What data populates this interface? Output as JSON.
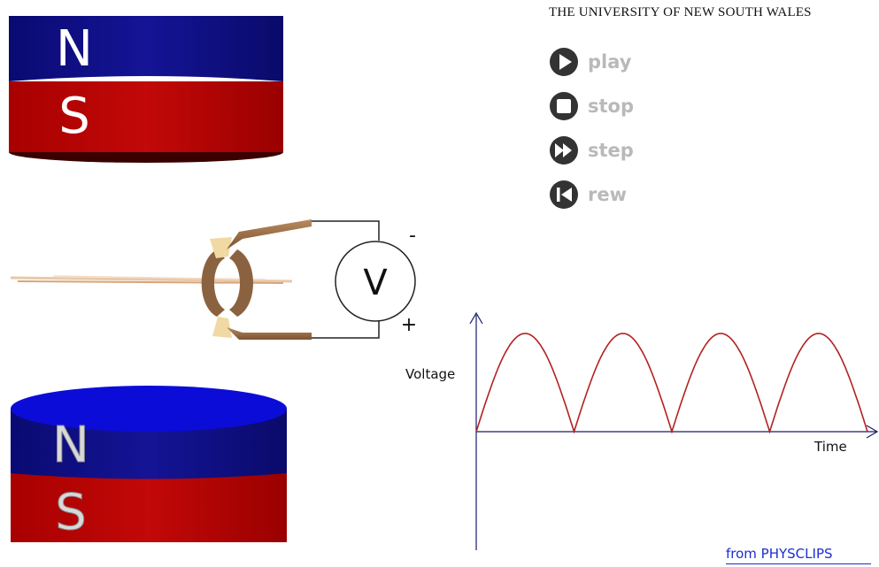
{
  "header": {
    "title": "THE UNIVERSITY OF NEW SOUTH WALES"
  },
  "controls": [
    {
      "label": "play",
      "icon": "play-icon"
    },
    {
      "label": "stop",
      "icon": "stop-icon"
    },
    {
      "label": "step",
      "icon": "step-icon"
    },
    {
      "label": "rew",
      "icon": "rewind-icon"
    }
  ],
  "magnets": {
    "top": {
      "north_label": "N",
      "south_label": "S"
    },
    "bottom": {
      "north_label": "N",
      "south_label": "S"
    }
  },
  "voltmeter": {
    "label": "V",
    "minus_label": "-",
    "plus_label": "+"
  },
  "graph": {
    "ylabel": "Voltage",
    "xlabel": "Time"
  },
  "chart_data": {
    "type": "line",
    "title": "",
    "xlabel": "Time",
    "ylabel": "Voltage",
    "series": [
      {
        "name": "",
        "function": "abs(sin)",
        "half_cycles": 4
      }
    ],
    "x_range": [
      0,
      4
    ],
    "ylim": [
      0,
      1
    ],
    "grid": false
  },
  "footer": {
    "credit": "from PHYSCLIPS"
  },
  "colors": {
    "north": "#0b0b7a",
    "south": "#b30000",
    "curve": "#b22222",
    "axis": "#1a1a6e",
    "controls": "#333333",
    "credit": "#1a2fd0"
  }
}
